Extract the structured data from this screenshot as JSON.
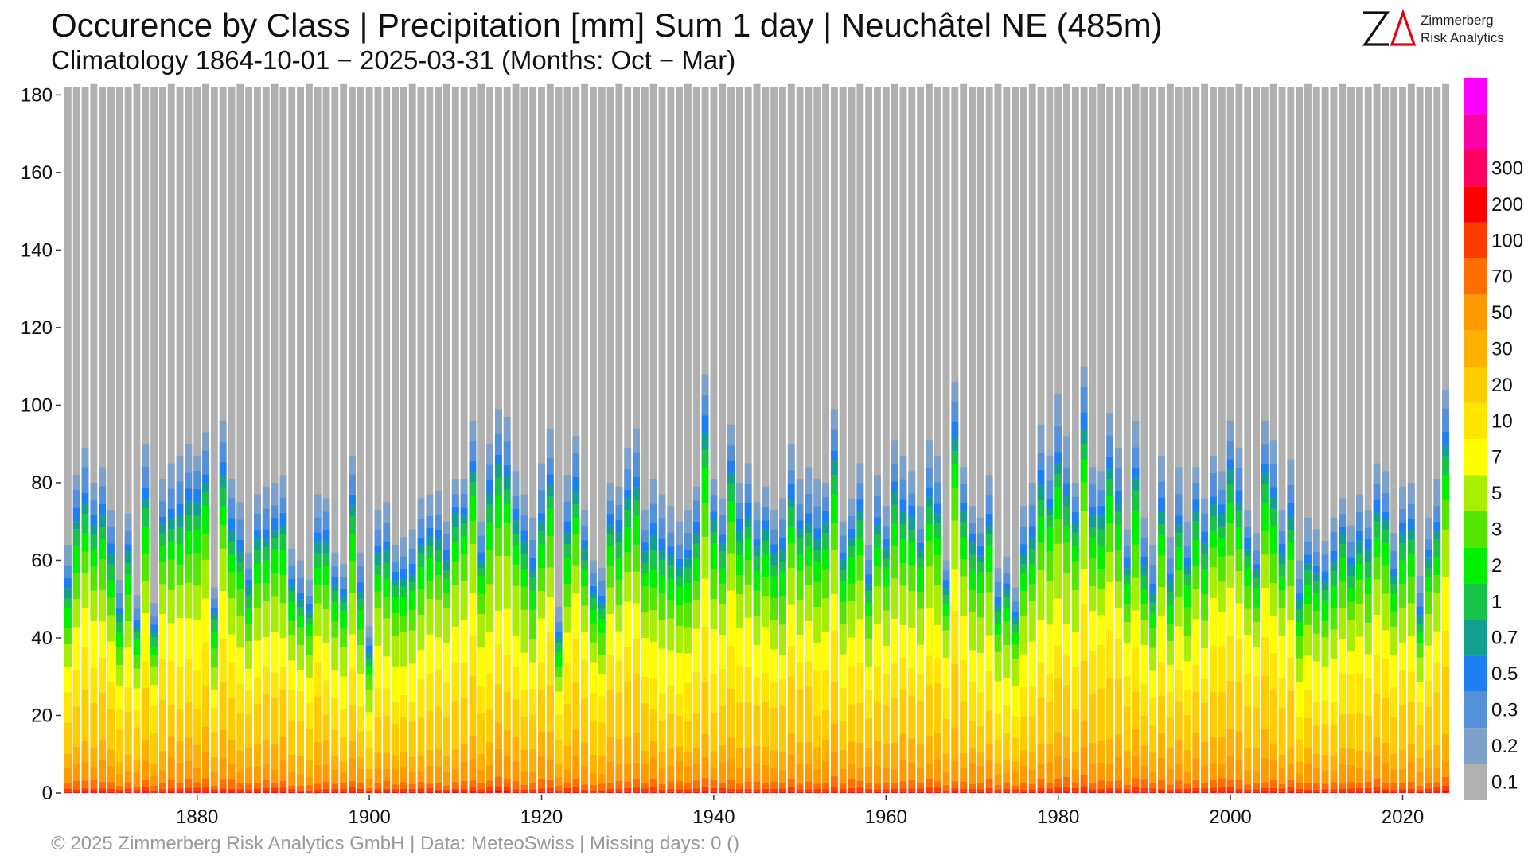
{
  "title": "Occurence by Class | Precipitation [mm] Sum 1 day | Neuchâtel  NE (485m)",
  "subtitle": "Climatology 1864-10-01 − 2025-03-31 (Months: Oct − Mar)",
  "footer": "©  2025 Zimmerberg Risk Analytics GmbH | Data: MeteoSwiss | Missing days: 0 ()",
  "logo": {
    "mark": "ZΔ",
    "line1": "Zimmerberg",
    "line2": "Risk Analytics",
    "color_z": "#111111",
    "color_delta": "#e8000b"
  },
  "chart_data": {
    "type": "bar",
    "stacked": true,
    "xlabel": "",
    "ylabel": "",
    "ylim": [
      0,
      185
    ],
    "y_ticks": [
      0,
      20,
      40,
      60,
      80,
      100,
      120,
      140,
      160,
      180
    ],
    "x_ticks": [
      1880,
      1900,
      1920,
      1940,
      1960,
      1980,
      2000,
      2020
    ],
    "x_range": [
      1865,
      2025
    ],
    "grid": false,
    "legend": "right colorbar",
    "classes": [
      {
        "label": "0.1",
        "color": "#b0b0b0"
      },
      {
        "label": "0.2",
        "color": "#7ea1c9"
      },
      {
        "label": "0.3",
        "color": "#5591d8"
      },
      {
        "label": "0.5",
        "color": "#1e7ff0"
      },
      {
        "label": "0.7",
        "color": "#13a090"
      },
      {
        "label": "1",
        "color": "#17c447"
      },
      {
        "label": "2",
        "color": "#00f000"
      },
      {
        "label": "3",
        "color": "#55e600"
      },
      {
        "label": "5",
        "color": "#a8ee00"
      },
      {
        "label": "7",
        "color": "#ffff00"
      },
      {
        "label": "10",
        "color": "#ffe600"
      },
      {
        "label": "20",
        "color": "#ffcc00"
      },
      {
        "label": "30",
        "color": "#ffb000"
      },
      {
        "label": "50",
        "color": "#ff9a00"
      },
      {
        "label": "70",
        "color": "#ff6e00"
      },
      {
        "label": "100",
        "color": "#ff3c00"
      },
      {
        "label": "200",
        "color": "#ff0000"
      },
      {
        "label": "300",
        "color": "#ff0060"
      },
      {
        "label": "",
        "color": "#ff00a8"
      },
      {
        "label": "",
        "color": "#ff00ff"
      }
    ],
    "years": [
      1865,
      1866,
      1867,
      1868,
      1869,
      1870,
      1871,
      1872,
      1873,
      1874,
      1875,
      1876,
      1877,
      1878,
      1879,
      1880,
      1881,
      1882,
      1883,
      1884,
      1885,
      1886,
      1887,
      1888,
      1889,
      1890,
      1891,
      1892,
      1893,
      1894,
      1895,
      1896,
      1897,
      1898,
      1899,
      1900,
      1901,
      1902,
      1903,
      1904,
      1905,
      1906,
      1907,
      1908,
      1909,
      1910,
      1911,
      1912,
      1913,
      1914,
      1915,
      1916,
      1917,
      1918,
      1919,
      1920,
      1921,
      1922,
      1923,
      1924,
      1925,
      1926,
      1927,
      1928,
      1929,
      1930,
      1931,
      1932,
      1933,
      1934,
      1935,
      1936,
      1937,
      1938,
      1939,
      1940,
      1941,
      1942,
      1943,
      1944,
      1945,
      1946,
      1947,
      1948,
      1949,
      1950,
      1951,
      1952,
      1953,
      1954,
      1955,
      1956,
      1957,
      1958,
      1959,
      1960,
      1961,
      1962,
      1963,
      1964,
      1965,
      1966,
      1967,
      1968,
      1969,
      1970,
      1971,
      1972,
      1973,
      1974,
      1975,
      1976,
      1977,
      1978,
      1979,
      1980,
      1981,
      1982,
      1983,
      1984,
      1985,
      1986,
      1987,
      1988,
      1989,
      1990,
      1991,
      1992,
      1993,
      1994,
      1995,
      1996,
      1997,
      1998,
      1999,
      2000,
      2001,
      2002,
      2003,
      2004,
      2005,
      2006,
      2007,
      2008,
      2009,
      2010,
      2011,
      2012,
      2013,
      2014,
      2015,
      2016,
      2017,
      2018,
      2019,
      2020,
      2021,
      2022,
      2023,
      2024,
      2025
    ],
    "total_days": [
      182,
      182,
      182,
      183,
      182,
      182,
      182,
      182,
      183,
      182,
      182,
      182,
      183,
      182,
      182,
      182,
      183,
      182,
      182,
      182,
      183,
      182,
      182,
      182,
      183,
      182,
      182,
      182,
      183,
      182,
      182,
      182,
      183,
      182,
      182,
      182,
      182,
      182,
      182,
      182,
      183,
      182,
      182,
      182,
      183,
      182,
      182,
      182,
      183,
      182,
      182,
      182,
      183,
      182,
      182,
      182,
      183,
      182,
      182,
      182,
      183,
      182,
      182,
      182,
      183,
      182,
      182,
      182,
      183,
      182,
      182,
      182,
      183,
      182,
      182,
      182,
      183,
      182,
      182,
      182,
      183,
      182,
      182,
      182,
      183,
      182,
      182,
      182,
      183,
      182,
      182,
      182,
      183,
      182,
      182,
      182,
      183,
      182,
      182,
      182,
      183,
      182,
      182,
      182,
      183,
      182,
      182,
      182,
      183,
      182,
      182,
      182,
      183,
      182,
      182,
      182,
      183,
      182,
      182,
      182,
      183,
      182,
      182,
      182,
      183,
      182,
      182,
      182,
      183,
      182,
      182,
      182,
      183,
      182,
      182,
      182,
      183,
      182,
      182,
      182,
      183,
      182,
      182,
      182,
      183,
      182,
      182,
      182,
      183,
      182,
      182,
      182,
      183,
      182,
      182,
      182,
      183,
      182,
      182,
      182,
      183
    ],
    "wet_days": [
      64,
      82,
      89,
      80,
      84,
      73,
      55,
      72,
      51,
      90,
      49,
      81,
      85,
      87,
      90,
      87,
      93,
      53,
      96,
      81,
      75,
      62,
      77,
      79,
      80,
      82,
      63,
      60,
      55,
      77,
      76,
      62,
      59,
      87,
      62,
      43,
      73,
      75,
      64,
      66,
      68,
      76,
      77,
      78,
      70,
      81,
      81,
      96,
      70,
      90,
      99,
      97,
      83,
      77,
      71,
      85,
      94,
      48,
      82,
      92,
      73,
      60,
      58,
      80,
      79,
      89,
      94,
      73,
      81,
      77,
      74,
      70,
      73,
      79,
      108,
      81,
      76,
      95,
      80,
      85,
      75,
      79,
      73,
      76,
      90,
      81,
      84,
      81,
      80,
      99,
      70,
      76,
      85,
      64,
      82,
      74,
      91,
      87,
      83,
      74,
      91,
      87,
      60,
      106,
      84,
      74,
      71,
      82,
      58,
      61,
      53,
      74,
      80,
      95,
      87,
      103,
      92,
      80,
      110,
      84,
      83,
      98,
      89,
      68,
      96,
      71,
      64,
      87,
      66,
      84,
      70,
      84,
      76,
      87,
      83,
      96,
      89,
      73,
      67,
      96,
      91,
      73,
      86,
      60,
      71,
      68,
      65,
      71,
      76,
      69,
      77,
      73,
      85,
      83,
      67,
      79,
      80,
      56,
      71,
      81,
      104
    ]
  }
}
